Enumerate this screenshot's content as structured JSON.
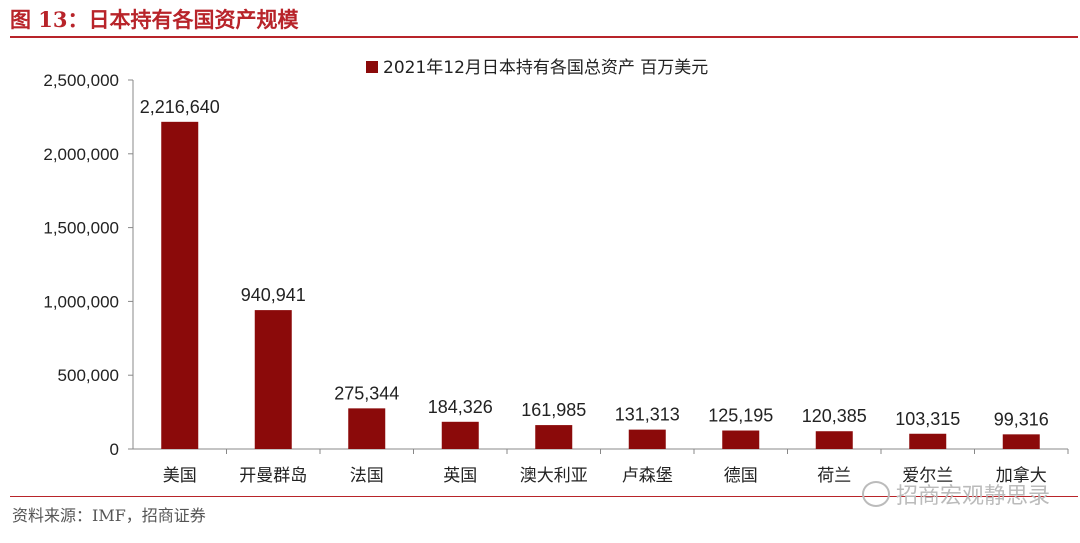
{
  "figure": {
    "title": "图 13：日本持有各国资产规模",
    "source": "资料来源：IMF，招商证券",
    "watermark": "招商宏观静思录"
  },
  "colors": {
    "bar": "#8b0a0a",
    "accent": "#b8242a"
  },
  "chart_data": {
    "type": "bar",
    "categories": [
      "美国",
      "开曼群岛",
      "法国",
      "英国",
      "澳大利亚",
      "卢森堡",
      "德国",
      "荷兰",
      "爱尔兰",
      "加拿大"
    ],
    "series": [
      {
        "name": "2021年12月日本持有各国总资产 百万美元",
        "values": [
          2216640,
          940941,
          275344,
          184326,
          161985,
          131313,
          125195,
          120385,
          103315,
          99316
        ]
      }
    ],
    "data_labels": [
      "2,216,640",
      "940,941",
      "275,344",
      "184,326",
      "161,985",
      "131,313",
      "125,195",
      "120,385",
      "103,315",
      "99,316"
    ],
    "y_ticks": [
      0,
      500000,
      1000000,
      1500000,
      2000000,
      2500000
    ],
    "y_tick_labels": [
      "0",
      "500,000",
      "1,000,000",
      "1,500,000",
      "2,000,000",
      "2,500,000"
    ],
    "ylim": [
      0,
      2500000
    ],
    "legend": "top",
    "grid": false
  }
}
